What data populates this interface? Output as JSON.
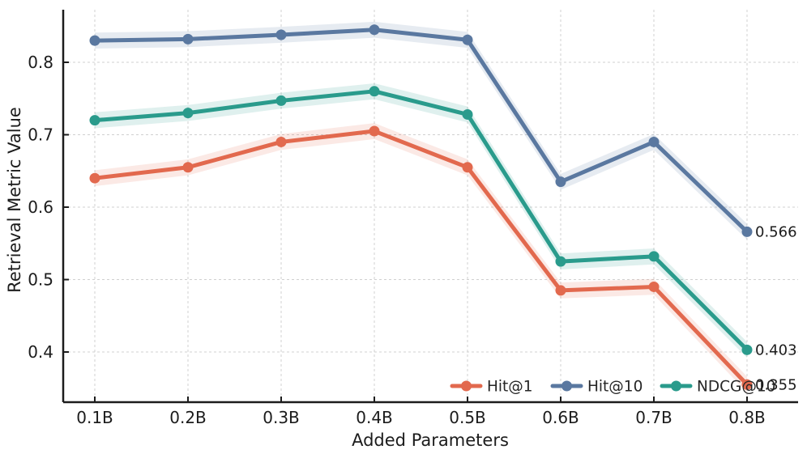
{
  "chart_data": {
    "type": "line",
    "title": "",
    "xlabel": "Added Parameters",
    "ylabel": "Retrieval Metric Value",
    "categories": [
      "0.1B",
      "0.2B",
      "0.3B",
      "0.4B",
      "0.5B",
      "0.6B",
      "0.7B",
      "0.8B"
    ],
    "ytick_labels": [
      "0.4",
      "0.5",
      "0.6",
      "0.7",
      "0.8"
    ],
    "ylim": [
      0.331,
      0.875
    ],
    "grid": {
      "visible": true,
      "style": "dashed",
      "color": "#cccccc",
      "both_axes": true
    },
    "legend": {
      "position": "lower-right-inside",
      "frame": false
    },
    "confidence_band_halfwidth": 0.011,
    "series": [
      {
        "name": "Hit@1",
        "color": "#E2694E",
        "values": [
          0.64,
          0.655,
          0.69,
          0.705,
          0.655,
          0.485,
          0.49,
          0.355
        ],
        "end_label": "0.355"
      },
      {
        "name": "Hit@10",
        "color": "#5A78A0",
        "values": [
          0.83,
          0.832,
          0.838,
          0.845,
          0.831,
          0.635,
          0.69,
          0.566
        ],
        "end_label": "0.566"
      },
      {
        "name": "NDCG@10",
        "color": "#2A9B8C",
        "values": [
          0.72,
          0.73,
          0.747,
          0.76,
          0.728,
          0.525,
          0.532,
          0.403
        ],
        "end_label": "0.403"
      }
    ]
  }
}
